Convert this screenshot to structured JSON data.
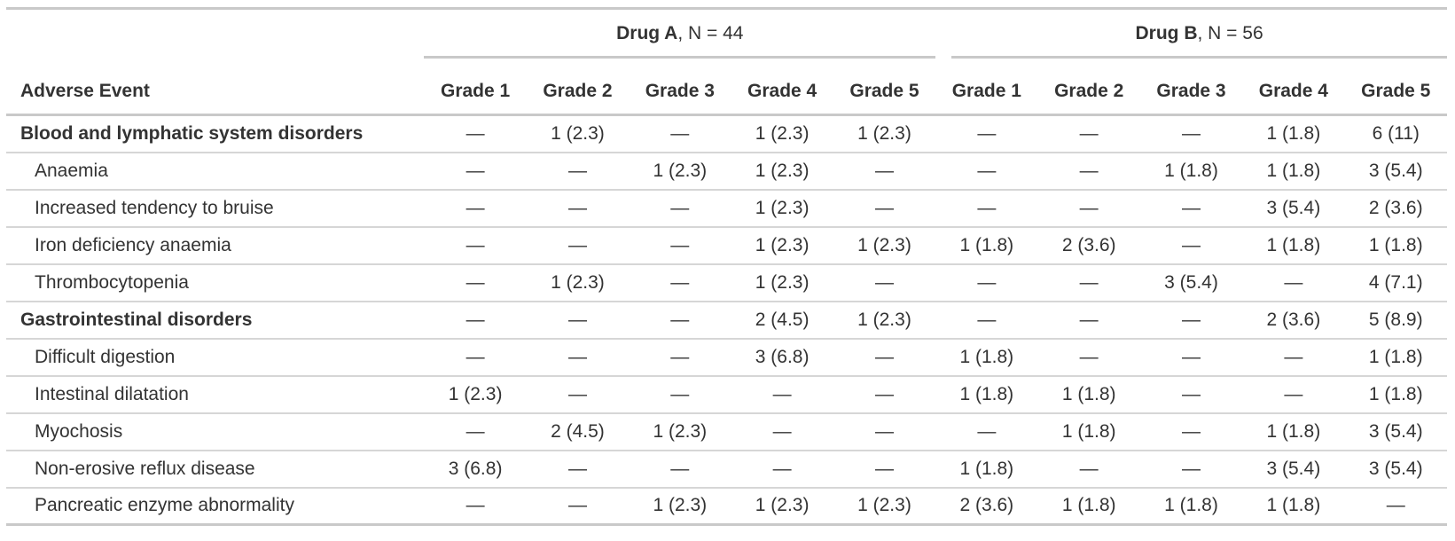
{
  "colors": {
    "text": "#333333",
    "rule-heavy": "#c9c9c9",
    "rule-light": "#d6d6d6",
    "bg": "#ffffff"
  },
  "table": {
    "header": {
      "row_label": "Adverse Event",
      "groups": [
        {
          "name": "Drug A",
          "n_label": ", N = 44",
          "columns": [
            "Grade 1",
            "Grade 2",
            "Grade 3",
            "Grade 4",
            "Grade 5"
          ]
        },
        {
          "name": "Drug B",
          "n_label": ", N = 56",
          "columns": [
            "Grade 1",
            "Grade 2",
            "Grade 3",
            "Grade 4",
            "Grade 5"
          ]
        }
      ]
    },
    "rows": [
      {
        "label": "Blood and lymphatic system disorders",
        "section": true,
        "values": [
          "—",
          "1 (2.3)",
          "—",
          "1 (2.3)",
          "1 (2.3)",
          "—",
          "—",
          "—",
          "1 (1.8)",
          "6 (11)"
        ]
      },
      {
        "label": "Anaemia",
        "section": false,
        "values": [
          "—",
          "—",
          "1 (2.3)",
          "1 (2.3)",
          "—",
          "—",
          "—",
          "1 (1.8)",
          "1 (1.8)",
          "3 (5.4)"
        ]
      },
      {
        "label": "Increased tendency to bruise",
        "section": false,
        "values": [
          "—",
          "—",
          "—",
          "1 (2.3)",
          "—",
          "—",
          "—",
          "—",
          "3 (5.4)",
          "2 (3.6)"
        ]
      },
      {
        "label": "Iron deficiency anaemia",
        "section": false,
        "values": [
          "—",
          "—",
          "—",
          "1 (2.3)",
          "1 (2.3)",
          "1 (1.8)",
          "2 (3.6)",
          "—",
          "1 (1.8)",
          "1 (1.8)"
        ]
      },
      {
        "label": "Thrombocytopenia",
        "section": false,
        "values": [
          "—",
          "1 (2.3)",
          "—",
          "1 (2.3)",
          "—",
          "—",
          "—",
          "3 (5.4)",
          "—",
          "4 (7.1)"
        ]
      },
      {
        "label": "Gastrointestinal disorders",
        "section": true,
        "values": [
          "—",
          "—",
          "—",
          "2 (4.5)",
          "1 (2.3)",
          "—",
          "—",
          "—",
          "2 (3.6)",
          "5 (8.9)"
        ]
      },
      {
        "label": "Difficult digestion",
        "section": false,
        "values": [
          "—",
          "—",
          "—",
          "3 (6.8)",
          "—",
          "1 (1.8)",
          "—",
          "—",
          "—",
          "1 (1.8)"
        ]
      },
      {
        "label": "Intestinal dilatation",
        "section": false,
        "values": [
          "1 (2.3)",
          "—",
          "—",
          "—",
          "—",
          "1 (1.8)",
          "1 (1.8)",
          "—",
          "—",
          "1 (1.8)"
        ]
      },
      {
        "label": "Myochosis",
        "section": false,
        "values": [
          "—",
          "2 (4.5)",
          "1 (2.3)",
          "—",
          "—",
          "—",
          "1 (1.8)",
          "—",
          "1 (1.8)",
          "3 (5.4)"
        ]
      },
      {
        "label": "Non-erosive reflux disease",
        "section": false,
        "values": [
          "3 (6.8)",
          "—",
          "—",
          "—",
          "—",
          "1 (1.8)",
          "—",
          "—",
          "3 (5.4)",
          "3 (5.4)"
        ]
      },
      {
        "label": "Pancreatic enzyme abnormality",
        "section": false,
        "values": [
          "—",
          "—",
          "1 (2.3)",
          "1 (2.3)",
          "1 (2.3)",
          "2 (3.6)",
          "1 (1.8)",
          "1 (1.8)",
          "1 (1.8)",
          "—"
        ]
      }
    ]
  }
}
